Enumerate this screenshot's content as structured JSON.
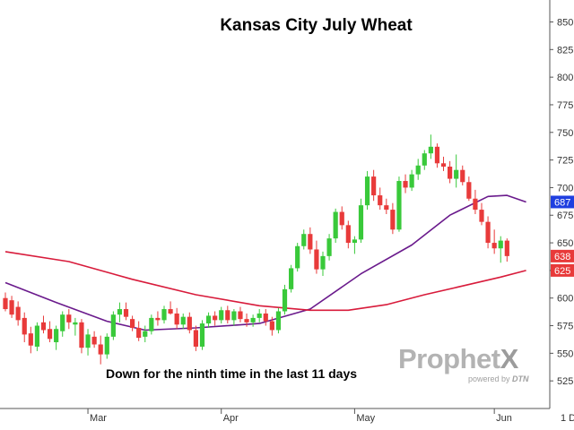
{
  "chart_data": {
    "type": "candlestick",
    "title": "Kansas City July Wheat",
    "annotation": "Down for the ninth time in the last 11 days",
    "y_axis": {
      "min": 500,
      "max": 865,
      "ticks": [
        525,
        550,
        575,
        600,
        625,
        650,
        675,
        700,
        725,
        750,
        775,
        800,
        825,
        850
      ],
      "tick_labels": [
        "525",
        "550",
        "575",
        "600",
        "625",
        "650",
        "675",
        "700",
        "725",
        "750",
        "775",
        "800",
        "825",
        "850"
      ]
    },
    "x_axis": {
      "labels": [
        {
          "label": "Mar",
          "index": 13
        },
        {
          "label": "Apr",
          "index": 34
        },
        {
          "label": "May",
          "index": 55
        },
        {
          "label": "Jun",
          "index": 77
        }
      ],
      "extra_label": "1 D"
    },
    "price_tags": [
      {
        "text": "687",
        "value": 687,
        "color": "#1f3fe0"
      },
      {
        "text": "638",
        "value": 638,
        "color": "#e83a3a"
      },
      {
        "text": "625",
        "value": 625,
        "color": "#e83a3a"
      }
    ],
    "candles": [
      {
        "o": 600,
        "h": 605,
        "l": 588,
        "c": 590
      },
      {
        "o": 598,
        "h": 602,
        "l": 582,
        "c": 585
      },
      {
        "o": 592,
        "h": 597,
        "l": 575,
        "c": 580
      },
      {
        "o": 582,
        "h": 587,
        "l": 560,
        "c": 567
      },
      {
        "o": 568,
        "h": 574,
        "l": 550,
        "c": 557
      },
      {
        "o": 556,
        "h": 578,
        "l": 552,
        "c": 575
      },
      {
        "o": 578,
        "h": 584,
        "l": 568,
        "c": 571
      },
      {
        "o": 572,
        "h": 579,
        "l": 560,
        "c": 563
      },
      {
        "o": 560,
        "h": 575,
        "l": 553,
        "c": 572
      },
      {
        "o": 570,
        "h": 588,
        "l": 565,
        "c": 585
      },
      {
        "o": 585,
        "h": 590,
        "l": 572,
        "c": 578
      },
      {
        "o": 576,
        "h": 582,
        "l": 566,
        "c": 578
      },
      {
        "o": 578,
        "h": 581,
        "l": 550,
        "c": 555
      },
      {
        "o": 555,
        "h": 572,
        "l": 548,
        "c": 567
      },
      {
        "o": 565,
        "h": 570,
        "l": 555,
        "c": 558
      },
      {
        "o": 558,
        "h": 566,
        "l": 540,
        "c": 549
      },
      {
        "o": 549,
        "h": 568,
        "l": 545,
        "c": 565
      },
      {
        "o": 565,
        "h": 588,
        "l": 562,
        "c": 585
      },
      {
        "o": 585,
        "h": 596,
        "l": 578,
        "c": 590
      },
      {
        "o": 590,
        "h": 596,
        "l": 580,
        "c": 583
      },
      {
        "o": 581,
        "h": 584,
        "l": 570,
        "c": 573
      },
      {
        "o": 573,
        "h": 579,
        "l": 561,
        "c": 564
      },
      {
        "o": 565,
        "h": 575,
        "l": 560,
        "c": 570
      },
      {
        "o": 570,
        "h": 585,
        "l": 567,
        "c": 582
      },
      {
        "o": 582,
        "h": 588,
        "l": 575,
        "c": 580
      },
      {
        "o": 580,
        "h": 593,
        "l": 577,
        "c": 590
      },
      {
        "o": 590,
        "h": 597,
        "l": 585,
        "c": 586
      },
      {
        "o": 586,
        "h": 591,
        "l": 572,
        "c": 576
      },
      {
        "o": 576,
        "h": 586,
        "l": 572,
        "c": 583
      },
      {
        "o": 583,
        "h": 587,
        "l": 568,
        "c": 571
      },
      {
        "o": 571,
        "h": 575,
        "l": 552,
        "c": 556
      },
      {
        "o": 556,
        "h": 580,
        "l": 553,
        "c": 577
      },
      {
        "o": 577,
        "h": 587,
        "l": 573,
        "c": 584
      },
      {
        "o": 584,
        "h": 588,
        "l": 575,
        "c": 580
      },
      {
        "o": 580,
        "h": 592,
        "l": 577,
        "c": 589
      },
      {
        "o": 589,
        "h": 593,
        "l": 577,
        "c": 580
      },
      {
        "o": 580,
        "h": 590,
        "l": 575,
        "c": 588
      },
      {
        "o": 588,
        "h": 592,
        "l": 578,
        "c": 581
      },
      {
        "o": 581,
        "h": 586,
        "l": 574,
        "c": 578
      },
      {
        "o": 578,
        "h": 585,
        "l": 574,
        "c": 582
      },
      {
        "o": 582,
        "h": 590,
        "l": 578,
        "c": 586
      },
      {
        "o": 586,
        "h": 590,
        "l": 575,
        "c": 579
      },
      {
        "o": 579,
        "h": 583,
        "l": 566,
        "c": 571
      },
      {
        "o": 571,
        "h": 591,
        "l": 568,
        "c": 588
      },
      {
        "o": 588,
        "h": 612,
        "l": 585,
        "c": 608
      },
      {
        "o": 608,
        "h": 630,
        "l": 605,
        "c": 627
      },
      {
        "o": 627,
        "h": 650,
        "l": 624,
        "c": 647
      },
      {
        "o": 647,
        "h": 662,
        "l": 644,
        "c": 658
      },
      {
        "o": 658,
        "h": 664,
        "l": 640,
        "c": 644
      },
      {
        "o": 644,
        "h": 652,
        "l": 622,
        "c": 626
      },
      {
        "o": 626,
        "h": 642,
        "l": 620,
        "c": 638
      },
      {
        "o": 638,
        "h": 658,
        "l": 634,
        "c": 654
      },
      {
        "o": 654,
        "h": 681,
        "l": 650,
        "c": 678
      },
      {
        "o": 678,
        "h": 683,
        "l": 662,
        "c": 666
      },
      {
        "o": 666,
        "h": 670,
        "l": 645,
        "c": 650
      },
      {
        "o": 650,
        "h": 656,
        "l": 640,
        "c": 653
      },
      {
        "o": 653,
        "h": 690,
        "l": 650,
        "c": 684
      },
      {
        "o": 684,
        "h": 715,
        "l": 680,
        "c": 710
      },
      {
        "o": 710,
        "h": 716,
        "l": 688,
        "c": 693
      },
      {
        "o": 693,
        "h": 700,
        "l": 680,
        "c": 684
      },
      {
        "o": 684,
        "h": 690,
        "l": 676,
        "c": 680
      },
      {
        "o": 680,
        "h": 686,
        "l": 658,
        "c": 662
      },
      {
        "o": 662,
        "h": 710,
        "l": 660,
        "c": 706
      },
      {
        "o": 706,
        "h": 712,
        "l": 695,
        "c": 700
      },
      {
        "o": 700,
        "h": 716,
        "l": 697,
        "c": 712
      },
      {
        "o": 712,
        "h": 726,
        "l": 707,
        "c": 720
      },
      {
        "o": 720,
        "h": 734,
        "l": 716,
        "c": 731
      },
      {
        "o": 731,
        "h": 748,
        "l": 726,
        "c": 737
      },
      {
        "o": 737,
        "h": 740,
        "l": 718,
        "c": 722
      },
      {
        "o": 722,
        "h": 728,
        "l": 715,
        "c": 719
      },
      {
        "o": 719,
        "h": 724,
        "l": 704,
        "c": 708
      },
      {
        "o": 708,
        "h": 730,
        "l": 700,
        "c": 716
      },
      {
        "o": 716,
        "h": 720,
        "l": 702,
        "c": 705
      },
      {
        "o": 705,
        "h": 710,
        "l": 688,
        "c": 690
      },
      {
        "o": 690,
        "h": 698,
        "l": 676,
        "c": 680
      },
      {
        "o": 680,
        "h": 686,
        "l": 666,
        "c": 669
      },
      {
        "o": 669,
        "h": 674,
        "l": 645,
        "c": 650
      },
      {
        "o": 650,
        "h": 662,
        "l": 640,
        "c": 645
      },
      {
        "o": 645,
        "h": 656,
        "l": 632,
        "c": 652
      },
      {
        "o": 652,
        "h": 654,
        "l": 633,
        "c": 638
      }
    ],
    "moving_averages": [
      {
        "color": "#6a1a8c",
        "points": [
          [
            0,
            614
          ],
          [
            8,
            596
          ],
          [
            16,
            579
          ],
          [
            22,
            571
          ],
          [
            30,
            573
          ],
          [
            40,
            577
          ],
          [
            48,
            590
          ],
          [
            56,
            622
          ],
          [
            64,
            648
          ],
          [
            70,
            675
          ],
          [
            76,
            692
          ],
          [
            79,
            693
          ],
          [
            82,
            687
          ]
        ]
      },
      {
        "color": "#d81b3b",
        "points": [
          [
            0,
            642
          ],
          [
            10,
            633
          ],
          [
            20,
            617
          ],
          [
            30,
            603
          ],
          [
            40,
            593
          ],
          [
            48,
            589
          ],
          [
            54,
            589
          ],
          [
            60,
            594
          ],
          [
            66,
            603
          ],
          [
            72,
            611
          ],
          [
            78,
            619
          ],
          [
            82,
            625
          ]
        ]
      }
    ]
  }
}
